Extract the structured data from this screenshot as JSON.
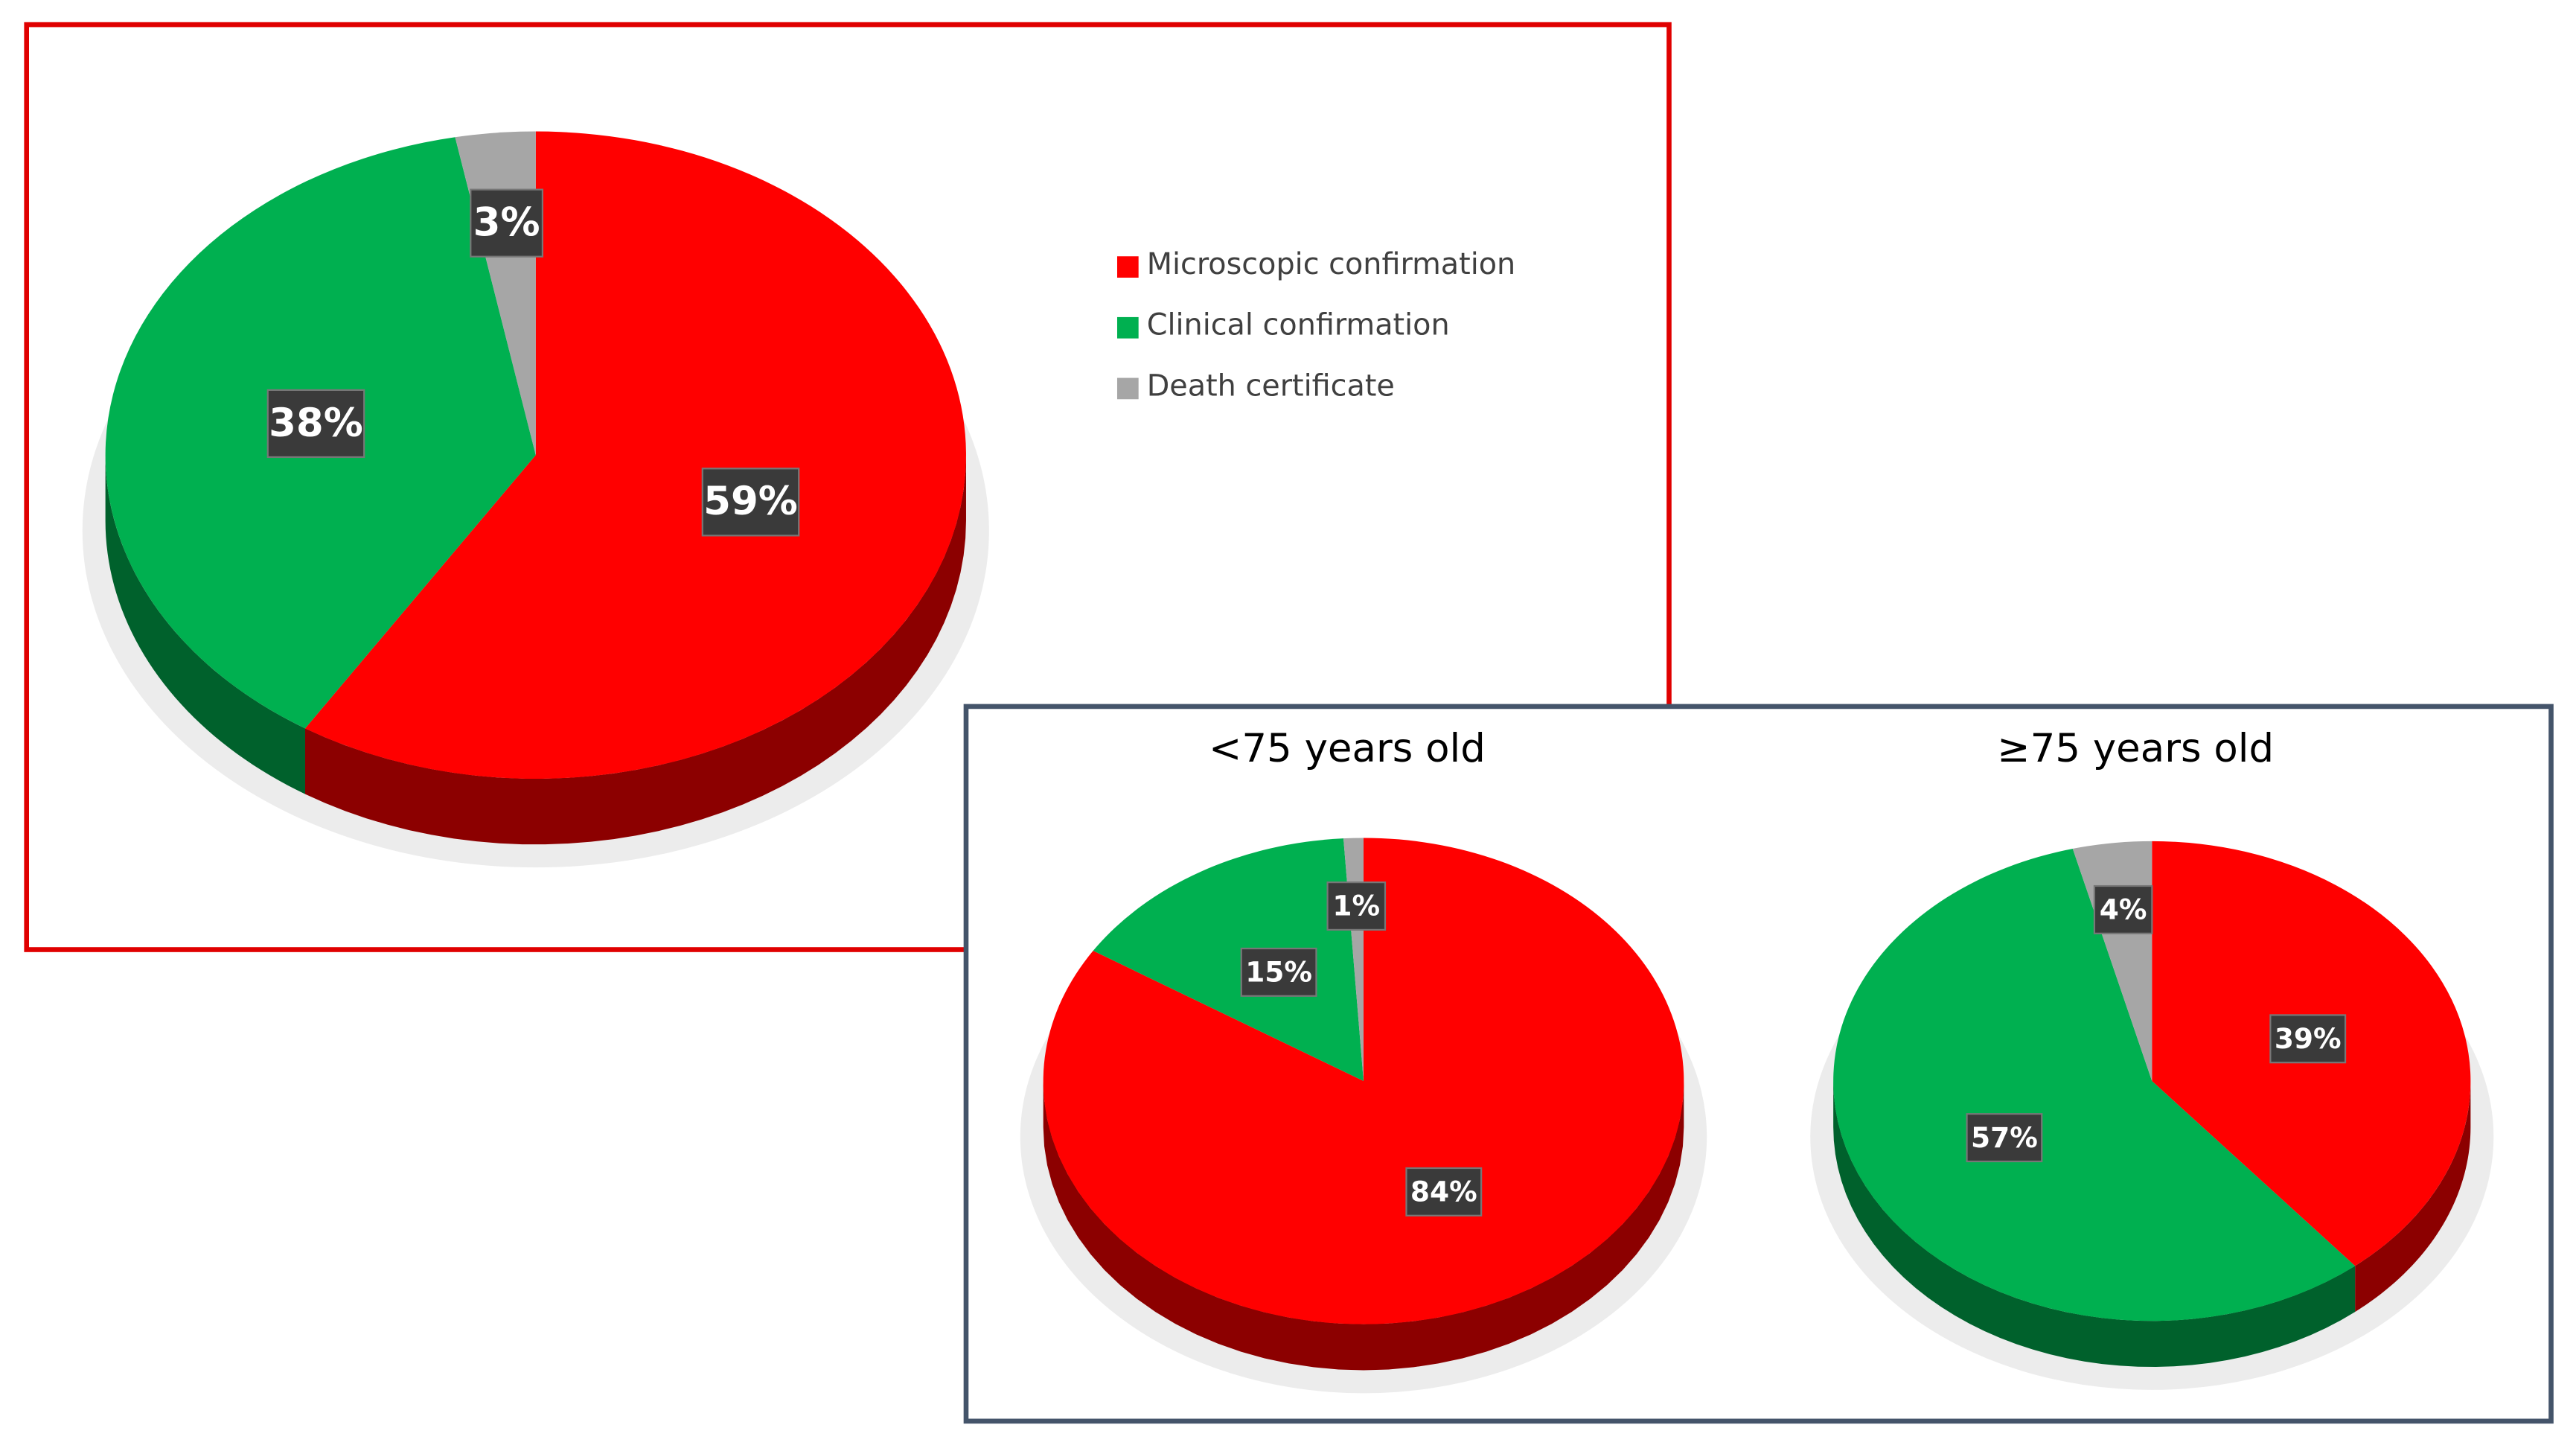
{
  "chart_data": [
    {
      "type": "pie",
      "categories": [
        "Microscopic confirmation",
        "Clinical confirmation",
        "Death certificate"
      ],
      "values": [
        59,
        38,
        3
      ],
      "value_labels": [
        "59%",
        "38%",
        "3%"
      ],
      "colors": [
        "#ff0000",
        "#00b050",
        "#a6a6a6"
      ],
      "legend": "right"
    },
    {
      "type": "pie",
      "title": "<75 years old",
      "values": [
        84,
        15,
        1
      ],
      "value_labels": [
        "84%",
        "15%",
        "1%"
      ],
      "colors": [
        "#ff0000",
        "#00b050",
        "#a6a6a6"
      ]
    },
    {
      "type": "pie",
      "title": "≥75 years old",
      "values": [
        39,
        57,
        4
      ],
      "value_labels": [
        "39%",
        "57%",
        "4%"
      ],
      "colors": [
        "#ff0000",
        "#00b050",
        "#a6a6a6"
      ]
    }
  ]
}
